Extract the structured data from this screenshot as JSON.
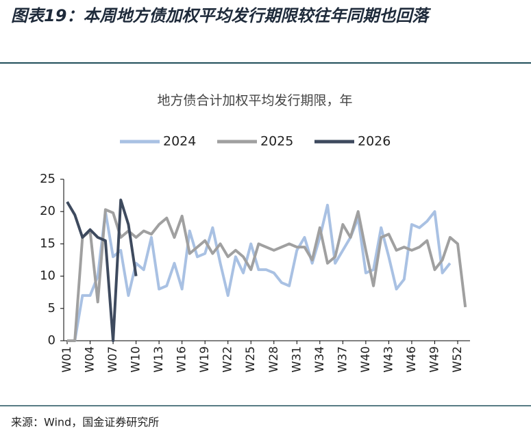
{
  "header": {
    "title": "图表19：本周地方债加权平均发行期限较往年同期也回落"
  },
  "chart_data": {
    "type": "line",
    "title": "地方债合计加权平均发行期限，年",
    "categories": [
      "W01",
      null,
      null,
      "W04",
      null,
      null,
      "W07",
      null,
      null,
      "W10",
      null,
      null,
      "W13",
      null,
      null,
      "W16",
      null,
      null,
      "W19",
      null,
      null,
      "W22",
      null,
      null,
      "W25",
      null,
      null,
      "W28",
      null,
      null,
      "W31",
      null,
      null,
      "W34",
      null,
      null,
      "W37",
      null,
      null,
      "W40",
      null,
      null,
      "W43",
      null,
      null,
      "W46",
      null,
      null,
      "W49",
      null,
      null,
      "W52",
      null
    ],
    "series": [
      {
        "name": "2024",
        "color": "#a9c1e3",
        "values": [
          0,
          0,
          7,
          7,
          10,
          20,
          13,
          14,
          7,
          12,
          11,
          16,
          8,
          8.5,
          12,
          8,
          17,
          13,
          13.5,
          17.5,
          12,
          7,
          13,
          10.5,
          15,
          11,
          11,
          10.5,
          9,
          8.5,
          14,
          16,
          12,
          16,
          21,
          12,
          14,
          16,
          19,
          10.5,
          11,
          17.5,
          13,
          8,
          9.5,
          18,
          17.5,
          18.5,
          20,
          10.5,
          12,
          null,
          null
        ]
      },
      {
        "name": "2025",
        "color": "#a0a0a0",
        "values": [
          0,
          0,
          16,
          17,
          6,
          20.3,
          19.8,
          16,
          17,
          16,
          17,
          16.5,
          18,
          19,
          16,
          19.3,
          13.5,
          14.5,
          15.5,
          13.5,
          15,
          13,
          14,
          13,
          11,
          15,
          14.5,
          14,
          14.5,
          15,
          14.5,
          14.5,
          12.5,
          17.5,
          12,
          13,
          18,
          16,
          20,
          14,
          8.5,
          16,
          16.5,
          14,
          14.5,
          14,
          14.5,
          15.5,
          11,
          12.5,
          16,
          15,
          5.2
        ]
      },
      {
        "name": "2026",
        "color": "#3e4a5e",
        "values": [
          21.5,
          19.5,
          16,
          17.2,
          16,
          15.5,
          0,
          21.8,
          18,
          10,
          null,
          null,
          null,
          null,
          null,
          null,
          null,
          null,
          null,
          null,
          null,
          null,
          null,
          null,
          null,
          null,
          null,
          null,
          null,
          null,
          null,
          null,
          null,
          null,
          null,
          null,
          null,
          null,
          null,
          null,
          null,
          null,
          null,
          null,
          null,
          null,
          null,
          null,
          null,
          null,
          null,
          null,
          null
        ]
      }
    ],
    "ylim": [
      0,
      25
    ],
    "yticks": [
      0,
      5,
      10,
      15,
      20,
      25
    ]
  },
  "footer": {
    "source": "来源：Wind，国金证券研究所"
  }
}
